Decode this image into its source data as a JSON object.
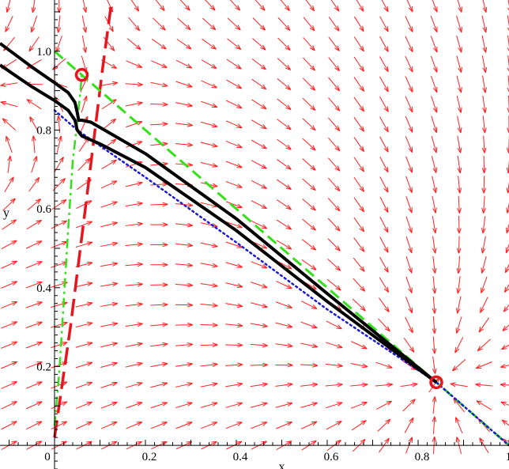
{
  "chart_data": {
    "type": "vector_field_phase_portrait",
    "xlabel": "x",
    "ylabel": "y",
    "xlim": [
      -0.12,
      1.0
    ],
    "ylim": [
      -0.06,
      1.13
    ],
    "x_ticks": [
      0,
      0.2,
      0.4,
      0.6,
      0.8,
      1.0
    ],
    "x_tick_labels": [
      "0",
      "0.2",
      "0.4",
      "0.6",
      "0.8",
      "1.0"
    ],
    "y_ticks": [
      0.2,
      0.4,
      0.6,
      0.8,
      1.0
    ],
    "y_tick_labels": [
      "0.2",
      "0.4",
      "0.6",
      "0.8",
      "1.0"
    ],
    "grid": false,
    "field": {
      "color": "#ff2020",
      "x_range": [
        -0.1,
        1.0
      ],
      "y_range": [
        0.0,
        1.12
      ],
      "nx": 21,
      "ny": 23,
      "equilibria": [
        [
          0.06,
          0.94
        ],
        [
          0.84,
          0.16
        ]
      ],
      "saddle_index": 0
    },
    "curves": [
      {
        "role": "red dashed steep line",
        "color": "#e8141e",
        "style": "long-dash",
        "points": [
          [
            0.0,
            0.02
          ],
          [
            0.035,
            0.3
          ],
          [
            0.07,
            0.62
          ],
          [
            0.105,
            0.95
          ],
          [
            0.126,
            1.13
          ]
        ]
      },
      {
        "role": "green dashed line",
        "color": "#33e019",
        "style": "dash",
        "points": [
          [
            0.0,
            1.0
          ],
          [
            0.06,
            0.94
          ],
          [
            0.3,
            0.7
          ],
          [
            0.5,
            0.5
          ],
          [
            0.7,
            0.3
          ],
          [
            0.84,
            0.16
          ],
          [
            1.0,
            0.0
          ]
        ]
      },
      {
        "role": "green dash-dot curve",
        "color": "#33e019",
        "style": "dash-dot",
        "points": [
          [
            0.0,
            0.05
          ],
          [
            0.01,
            0.18
          ],
          [
            0.02,
            0.36
          ],
          [
            0.03,
            0.55
          ],
          [
            0.04,
            0.72
          ],
          [
            0.05,
            0.82
          ],
          [
            0.057,
            0.9
          ],
          [
            0.06,
            0.94
          ]
        ]
      },
      {
        "role": "blue dotted line",
        "color": "#1a1ad0",
        "style": "dot",
        "points": [
          [
            0.0,
            0.85
          ],
          [
            0.05,
            0.8
          ],
          [
            0.2,
            0.68
          ],
          [
            0.4,
            0.515
          ],
          [
            0.6,
            0.345
          ],
          [
            0.84,
            0.16
          ],
          [
            1.0,
            0.0
          ]
        ]
      },
      {
        "role": "black trajectory 1",
        "color": "#000000",
        "style": "solid",
        "points": [
          [
            -0.12,
            1.02
          ],
          [
            -0.05,
            0.96
          ],
          [
            0.0,
            0.92
          ],
          [
            0.03,
            0.895
          ],
          [
            0.045,
            0.87
          ],
          [
            0.05,
            0.845
          ],
          [
            0.053,
            0.825
          ],
          [
            0.06,
            0.825
          ],
          [
            0.08,
            0.82
          ],
          [
            0.2,
            0.74
          ],
          [
            0.4,
            0.575
          ],
          [
            0.6,
            0.385
          ],
          [
            0.84,
            0.16
          ]
        ]
      },
      {
        "role": "black trajectory 2",
        "color": "#000000",
        "style": "solid",
        "points": [
          [
            -0.12,
            0.965
          ],
          [
            -0.05,
            0.91
          ],
          [
            0.0,
            0.875
          ],
          [
            0.03,
            0.85
          ],
          [
            0.045,
            0.825
          ],
          [
            0.05,
            0.8
          ],
          [
            0.06,
            0.785
          ],
          [
            0.1,
            0.765
          ],
          [
            0.2,
            0.705
          ],
          [
            0.4,
            0.545
          ],
          [
            0.6,
            0.365
          ],
          [
            0.84,
            0.16
          ]
        ]
      }
    ],
    "markers": [
      {
        "x": 0.06,
        "y": 0.94,
        "color": "#e8141e",
        "shape": "circle"
      },
      {
        "x": 0.84,
        "y": 0.16,
        "color": "#e8141e",
        "shape": "circle"
      }
    ]
  }
}
